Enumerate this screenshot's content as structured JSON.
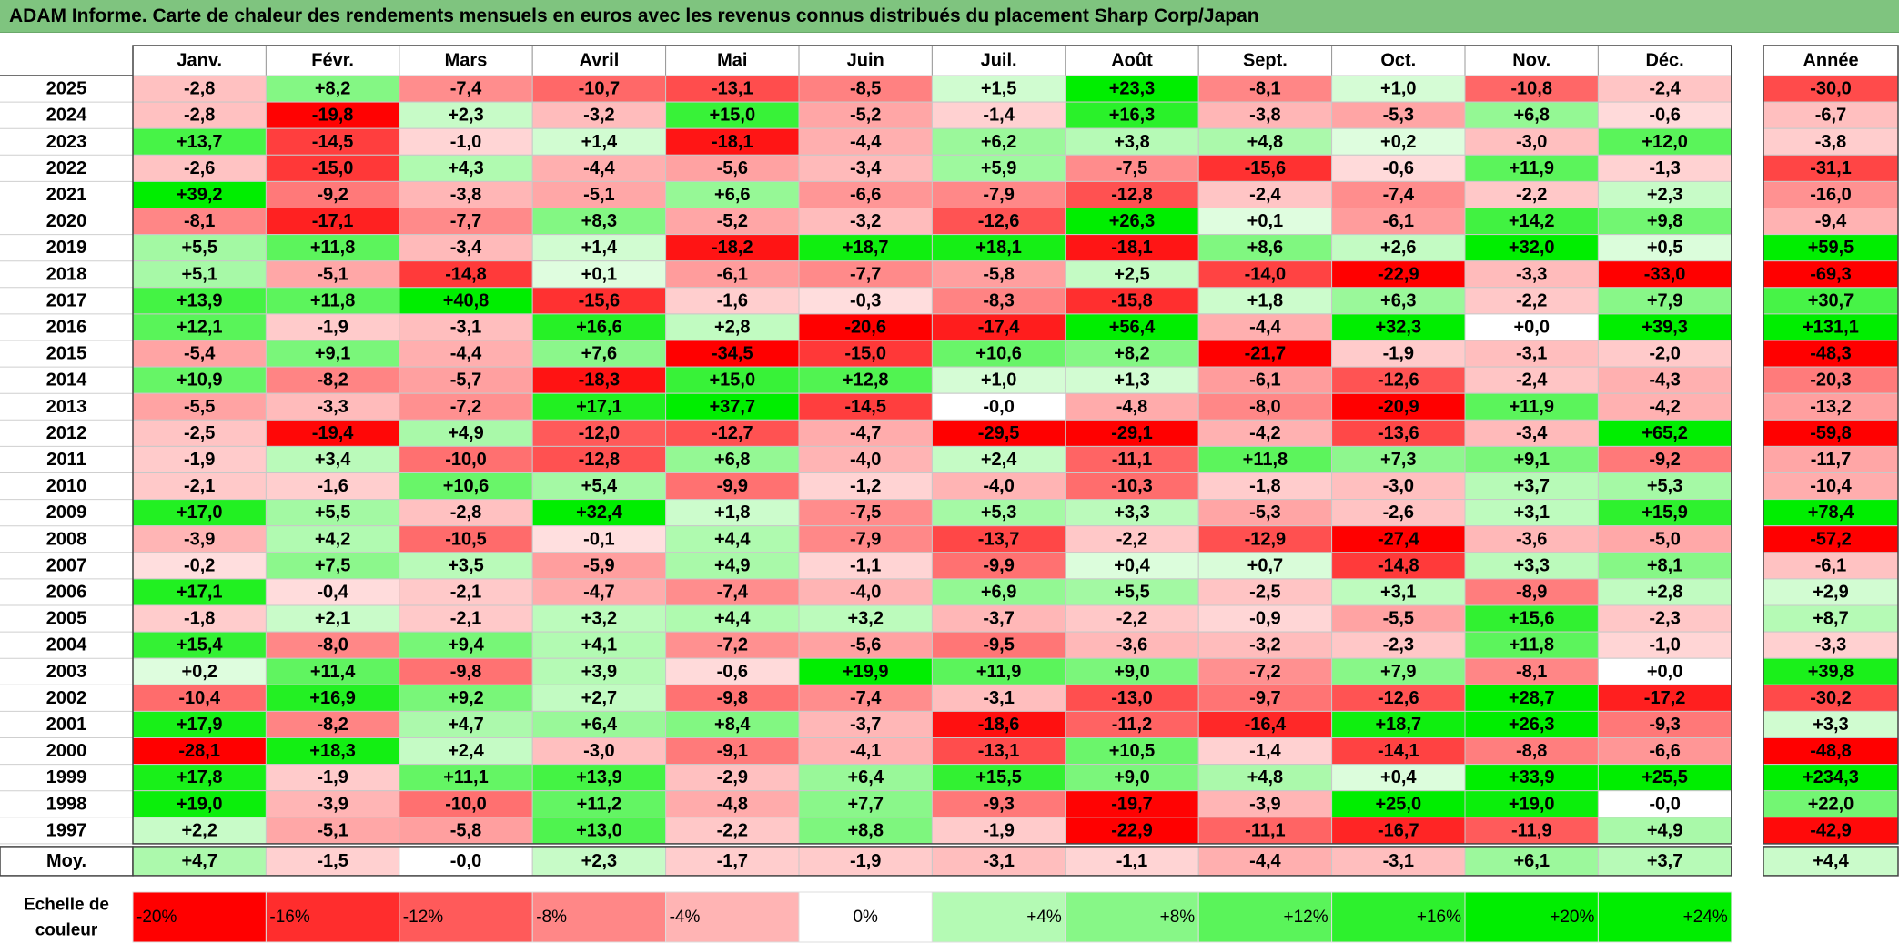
{
  "title": "ADAM Informe. Carte de chaleur des rendements mensuels en euros avec les revenus connus distribués du placement Sharp Corp/Japan",
  "chart_data": {
    "type": "heatmap",
    "title": "ADAM Informe. Carte de chaleur des rendements mensuels en euros avec les revenus connus distribués du placement Sharp Corp/Japan",
    "columns": [
      "Janv.",
      "Févr.",
      "Mars",
      "Avril",
      "Mai",
      "Juin",
      "Juil.",
      "Août",
      "Sept.",
      "Oct.",
      "Nov.",
      "Déc."
    ],
    "year_column": "Année",
    "rows": [
      {
        "year": "2025",
        "values": [
          "-2,8",
          "+8,2",
          "-7,4",
          "-10,7",
          "-13,1",
          "-8,5",
          "+1,5",
          "+23,3",
          "-8,1",
          "+1,0",
          "-10,8",
          "-2,4"
        ],
        "annual": "-30,0"
      },
      {
        "year": "2024",
        "values": [
          "-2,8",
          "-19,8",
          "+2,3",
          "-3,2",
          "+15,0",
          "-5,2",
          "-1,4",
          "+16,3",
          "-3,8",
          "-5,3",
          "+6,8",
          "-0,6"
        ],
        "annual": "-6,7"
      },
      {
        "year": "2023",
        "values": [
          "+13,7",
          "-14,5",
          "-1,0",
          "+1,4",
          "-18,1",
          "-4,4",
          "+6,2",
          "+3,8",
          "+4,8",
          "+0,2",
          "-3,0",
          "+12,0"
        ],
        "annual": "-3,8"
      },
      {
        "year": "2022",
        "values": [
          "-2,6",
          "-15,0",
          "+4,3",
          "-4,4",
          "-5,6",
          "-3,4",
          "+5,9",
          "-7,5",
          "-15,6",
          "-0,6",
          "+11,9",
          "-1,3"
        ],
        "annual": "-31,1"
      },
      {
        "year": "2021",
        "values": [
          "+39,2",
          "-9,2",
          "-3,8",
          "-5,1",
          "+6,6",
          "-6,6",
          "-7,9",
          "-12,8",
          "-2,4",
          "-7,4",
          "-2,2",
          "+2,3"
        ],
        "annual": "-16,0"
      },
      {
        "year": "2020",
        "values": [
          "-8,1",
          "-17,1",
          "-7,7",
          "+8,3",
          "-5,2",
          "-3,2",
          "-12,6",
          "+26,3",
          "+0,1",
          "-6,1",
          "+14,2",
          "+9,8"
        ],
        "annual": "-9,4"
      },
      {
        "year": "2019",
        "values": [
          "+5,5",
          "+11,8",
          "-3,4",
          "+1,4",
          "-18,2",
          "+18,7",
          "+18,1",
          "-18,1",
          "+8,6",
          "+2,6",
          "+32,0",
          "+0,5"
        ],
        "annual": "+59,5"
      },
      {
        "year": "2018",
        "values": [
          "+5,1",
          "-5,1",
          "-14,8",
          "+0,1",
          "-6,1",
          "-7,7",
          "-5,8",
          "+2,5",
          "-14,0",
          "-22,9",
          "-3,3",
          "-33,0"
        ],
        "annual": "-69,3"
      },
      {
        "year": "2017",
        "values": [
          "+13,9",
          "+11,8",
          "+40,8",
          "-15,6",
          "-1,6",
          "-0,3",
          "-8,3",
          "-15,8",
          "+1,8",
          "+6,3",
          "-2,2",
          "+7,9"
        ],
        "annual": "+30,7"
      },
      {
        "year": "2016",
        "values": [
          "+12,1",
          "-1,9",
          "-3,1",
          "+16,6",
          "+2,8",
          "-20,6",
          "-17,4",
          "+56,4",
          "-4,4",
          "+32,3",
          "+0,0",
          "+39,3"
        ],
        "annual": "+131,1"
      },
      {
        "year": "2015",
        "values": [
          "-5,4",
          "+9,1",
          "-4,4",
          "+7,6",
          "-34,5",
          "-15,0",
          "+10,6",
          "+8,2",
          "-21,7",
          "-1,9",
          "-3,1",
          "-2,0"
        ],
        "annual": "-48,3"
      },
      {
        "year": "2014",
        "values": [
          "+10,9",
          "-8,2",
          "-5,7",
          "-18,3",
          "+15,0",
          "+12,8",
          "+1,0",
          "+1,3",
          "-6,1",
          "-12,6",
          "-2,4",
          "-4,3"
        ],
        "annual": "-20,3"
      },
      {
        "year": "2013",
        "values": [
          "-5,5",
          "-3,3",
          "-7,2",
          "+17,1",
          "+37,7",
          "-14,5",
          "-0,0",
          "-4,8",
          "-8,0",
          "-20,9",
          "+11,9",
          "-4,2"
        ],
        "annual": "-13,2"
      },
      {
        "year": "2012",
        "values": [
          "-2,5",
          "-19,4",
          "+4,9",
          "-12,0",
          "-12,7",
          "-4,7",
          "-29,5",
          "-29,1",
          "-4,2",
          "-13,6",
          "-3,4",
          "+65,2"
        ],
        "annual": "-59,8"
      },
      {
        "year": "2011",
        "values": [
          "-1,9",
          "+3,4",
          "-10,0",
          "-12,8",
          "+6,8",
          "-4,0",
          "+2,4",
          "-11,1",
          "+11,8",
          "+7,3",
          "+9,1",
          "-9,2"
        ],
        "annual": "-11,7"
      },
      {
        "year": "2010",
        "values": [
          "-2,1",
          "-1,6",
          "+10,6",
          "+5,4",
          "-9,9",
          "-1,2",
          "-4,0",
          "-10,3",
          "-1,8",
          "-3,0",
          "+3,7",
          "+5,3"
        ],
        "annual": "-10,4"
      },
      {
        "year": "2009",
        "values": [
          "+17,0",
          "+5,5",
          "-2,8",
          "+32,4",
          "+1,8",
          "-7,5",
          "+5,3",
          "+3,3",
          "-5,3",
          "-2,6",
          "+3,1",
          "+15,9"
        ],
        "annual": "+78,4"
      },
      {
        "year": "2008",
        "values": [
          "-3,9",
          "+4,2",
          "-10,5",
          "-0,1",
          "+4,4",
          "-7,9",
          "-13,7",
          "-2,2",
          "-12,9",
          "-27,4",
          "-3,6",
          "-5,0"
        ],
        "annual": "-57,2"
      },
      {
        "year": "2007",
        "values": [
          "-0,2",
          "+7,5",
          "+3,5",
          "-5,9",
          "+4,9",
          "-1,1",
          "-9,9",
          "+0,4",
          "+0,7",
          "-14,8",
          "+3,3",
          "+8,1"
        ],
        "annual": "-6,1"
      },
      {
        "year": "2006",
        "values": [
          "+17,1",
          "-0,4",
          "-2,1",
          "-4,7",
          "-7,4",
          "-4,0",
          "+6,9",
          "+5,5",
          "-2,5",
          "+3,1",
          "-8,9",
          "+2,8"
        ],
        "annual": "+2,9"
      },
      {
        "year": "2005",
        "values": [
          "-1,8",
          "+2,1",
          "-2,1",
          "+3,2",
          "+4,4",
          "+3,2",
          "-3,7",
          "-2,2",
          "-0,9",
          "-5,5",
          "+15,6",
          "-2,3"
        ],
        "annual": "+8,7"
      },
      {
        "year": "2004",
        "values": [
          "+15,4",
          "-8,0",
          "+9,4",
          "+4,1",
          "-7,2",
          "-5,6",
          "-9,5",
          "-3,6",
          "-3,2",
          "-2,3",
          "+11,8",
          "-1,0"
        ],
        "annual": "-3,3"
      },
      {
        "year": "2003",
        "values": [
          "+0,2",
          "+11,4",
          "-9,8",
          "+3,9",
          "-0,6",
          "+19,9",
          "+11,9",
          "+9,0",
          "-7,2",
          "+7,9",
          "-8,1",
          "+0,0"
        ],
        "annual": "+39,8"
      },
      {
        "year": "2002",
        "values": [
          "-10,4",
          "+16,9",
          "+9,2",
          "+2,7",
          "-9,8",
          "-7,4",
          "-3,1",
          "-13,0",
          "-9,7",
          "-12,6",
          "+28,7",
          "-17,2"
        ],
        "annual": "-30,2"
      },
      {
        "year": "2001",
        "values": [
          "+17,9",
          "-8,2",
          "+4,7",
          "+6,4",
          "+8,4",
          "-3,7",
          "-18,6",
          "-11,2",
          "-16,4",
          "+18,7",
          "+26,3",
          "-9,3"
        ],
        "annual": "+3,3"
      },
      {
        "year": "2000",
        "values": [
          "-28,1",
          "+18,3",
          "+2,4",
          "-3,0",
          "-9,1",
          "-4,1",
          "-13,1",
          "+10,5",
          "-1,4",
          "-14,1",
          "-8,8",
          "-6,6"
        ],
        "annual": "-48,8"
      },
      {
        "year": "1999",
        "values": [
          "+17,8",
          "-1,9",
          "+11,1",
          "+13,9",
          "-2,9",
          "+6,4",
          "+15,5",
          "+9,0",
          "+4,8",
          "+0,4",
          "+33,9",
          "+25,5"
        ],
        "annual": "+234,3"
      },
      {
        "year": "1998",
        "values": [
          "+19,0",
          "-3,9",
          "-10,0",
          "+11,2",
          "-4,8",
          "+7,7",
          "-9,3",
          "-19,7",
          "-3,9",
          "+25,0",
          "+19,0",
          "-0,0"
        ],
        "annual": "+22,0"
      },
      {
        "year": "1997",
        "values": [
          "+2,2",
          "-5,1",
          "-5,8",
          "+13,0",
          "-2,2",
          "+8,8",
          "-1,9",
          "-22,9",
          "-11,1",
          "-16,7",
          "-11,9",
          "+4,9"
        ],
        "annual": "-42,9"
      }
    ],
    "average": {
      "label": "Moy.",
      "values": [
        "+4,7",
        "-1,5",
        "-0,0",
        "+2,3",
        "-1,7",
        "-1,9",
        "-3,1",
        "-1,1",
        "-4,4",
        "-3,1",
        "+6,1",
        "+3,7"
      ],
      "annual": "+4,4"
    },
    "scale": {
      "label_line1": "Echelle de",
      "label_line2": "couleur",
      "stops": [
        "-20%",
        "-16%",
        "-12%",
        "-8%",
        "-4%",
        "0%",
        "+4%",
        "+8%",
        "+12%",
        "+16%",
        "+20%",
        "+24%"
      ]
    },
    "colors": {
      "negative": "#ff0000",
      "neutral": "#ffffff",
      "positive": "#00ee00",
      "title_bg": "#7fc47f"
    }
  }
}
